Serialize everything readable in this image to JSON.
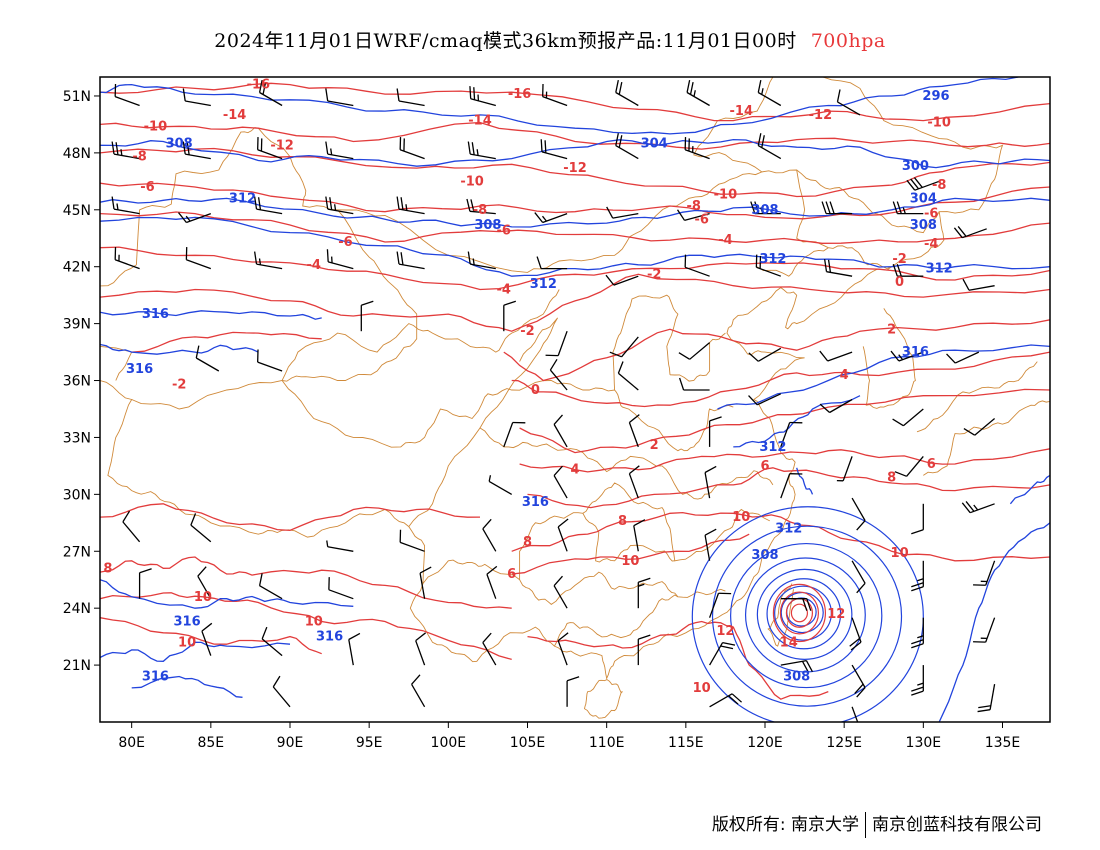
{
  "title": {
    "main": "2024年11月01日WRF/cmaq模式36km预报产品:11月01日00时",
    "level": "700hpa",
    "level_color": "#e8383a"
  },
  "map": {
    "lon_range": [
      78,
      138
    ],
    "lat_range": [
      18,
      52
    ],
    "lat_ticks": [
      "21N",
      "24N",
      "27N",
      "30N",
      "33N",
      "36N",
      "39N",
      "42N",
      "45N",
      "48N",
      "51N"
    ],
    "lon_ticks": [
      "80E",
      "85E",
      "90E",
      "95E",
      "100E",
      "105E",
      "110E",
      "115E",
      "120E",
      "125E",
      "130E",
      "135E"
    ],
    "colors": {
      "temperature_contour": "#e23c3c",
      "geopotential_contour": "#2244dd",
      "border": "#d08a3a",
      "wind_barb": "#000000"
    },
    "temperature_labels": [
      {
        "text": "-16",
        "lon": 88,
        "lat": 51.6
      },
      {
        "text": "-16",
        "lon": 104.5,
        "lat": 51.1
      },
      {
        "text": "-14",
        "lon": 86.5,
        "lat": 50.0
      },
      {
        "text": "-14",
        "lon": 102,
        "lat": 49.7
      },
      {
        "text": "-14",
        "lon": 118.5,
        "lat": 50.2
      },
      {
        "text": "-12",
        "lon": 123.5,
        "lat": 50.0
      },
      {
        "text": "-10",
        "lon": 131,
        "lat": 49.6
      },
      {
        "text": "-10",
        "lon": 81.5,
        "lat": 49.4
      },
      {
        "text": "-12",
        "lon": 89.5,
        "lat": 48.4
      },
      {
        "text": "-8",
        "lon": 80.5,
        "lat": 47.8
      },
      {
        "text": "-12",
        "lon": 108,
        "lat": 47.2
      },
      {
        "text": "-10",
        "lon": 101.5,
        "lat": 46.5
      },
      {
        "text": "-6",
        "lon": 81,
        "lat": 46.2
      },
      {
        "text": "-10",
        "lon": 117.5,
        "lat": 45.8
      },
      {
        "text": "-8",
        "lon": 115.5,
        "lat": 45.2
      },
      {
        "text": "-8",
        "lon": 102,
        "lat": 45.0
      },
      {
        "text": "-6",
        "lon": 116,
        "lat": 44.5
      },
      {
        "text": "-8",
        "lon": 131,
        "lat": 46.3
      },
      {
        "text": "-6",
        "lon": 130.5,
        "lat": 44.8
      },
      {
        "text": "-4",
        "lon": 130.5,
        "lat": 43.2
      },
      {
        "text": "-6",
        "lon": 103.5,
        "lat": 43.9
      },
      {
        "text": "-6",
        "lon": 93.5,
        "lat": 43.3
      },
      {
        "text": "-4",
        "lon": 117.5,
        "lat": 43.4
      },
      {
        "text": "-4",
        "lon": 91.5,
        "lat": 42.1
      },
      {
        "text": "-4",
        "lon": 103.5,
        "lat": 40.8
      },
      {
        "text": "-2",
        "lon": 128.5,
        "lat": 42.4
      },
      {
        "text": "-2",
        "lon": 113,
        "lat": 41.6
      },
      {
        "text": "0",
        "lon": 128.5,
        "lat": 41.2
      },
      {
        "text": "-2",
        "lon": 105,
        "lat": 38.6
      },
      {
        "text": "-2",
        "lon": 83,
        "lat": 35.8
      },
      {
        "text": "2",
        "lon": 128,
        "lat": 38.7
      },
      {
        "text": "0",
        "lon": 105.5,
        "lat": 35.5
      },
      {
        "text": "4",
        "lon": 125,
        "lat": 36.3
      },
      {
        "text": "2",
        "lon": 113,
        "lat": 32.6
      },
      {
        "text": "4",
        "lon": 108,
        "lat": 31.3
      },
      {
        "text": "6",
        "lon": 120,
        "lat": 31.5
      },
      {
        "text": "6",
        "lon": 130.5,
        "lat": 31.6
      },
      {
        "text": "8",
        "lon": 128,
        "lat": 30.9
      },
      {
        "text": "10",
        "lon": 118.5,
        "lat": 28.8
      },
      {
        "text": "8",
        "lon": 111,
        "lat": 28.6
      },
      {
        "text": "8",
        "lon": 105,
        "lat": 27.5
      },
      {
        "text": "6",
        "lon": 104,
        "lat": 25.8
      },
      {
        "text": "10",
        "lon": 111.5,
        "lat": 26.5
      },
      {
        "text": "10",
        "lon": 128.5,
        "lat": 26.9
      },
      {
        "text": "8",
        "lon": 78.5,
        "lat": 26.1
      },
      {
        "text": "10",
        "lon": 84.5,
        "lat": 24.6
      },
      {
        "text": "10",
        "lon": 83.5,
        "lat": 22.2
      },
      {
        "text": "10",
        "lon": 91.5,
        "lat": 23.3
      },
      {
        "text": "12",
        "lon": 117.5,
        "lat": 22.8
      },
      {
        "text": "12",
        "lon": 124.5,
        "lat": 23.7
      },
      {
        "text": "14",
        "lon": 121.5,
        "lat": 22.2
      },
      {
        "text": "10",
        "lon": 116,
        "lat": 19.8
      }
    ],
    "height_labels": [
      {
        "text": "296",
        "lon": 130.8,
        "lat": 51.0
      },
      {
        "text": "308",
        "lon": 83,
        "lat": 48.5
      },
      {
        "text": "304",
        "lon": 113,
        "lat": 48.5
      },
      {
        "text": "300",
        "lon": 129.5,
        "lat": 47.3
      },
      {
        "text": "312",
        "lon": 87,
        "lat": 45.6
      },
      {
        "text": "308",
        "lon": 120,
        "lat": 45.0
      },
      {
        "text": "304",
        "lon": 130,
        "lat": 45.6
      },
      {
        "text": "308",
        "lon": 102.5,
        "lat": 44.2
      },
      {
        "text": "308",
        "lon": 130,
        "lat": 44.2
      },
      {
        "text": "312",
        "lon": 120.5,
        "lat": 42.4
      },
      {
        "text": "312",
        "lon": 131,
        "lat": 41.9
      },
      {
        "text": "312",
        "lon": 106,
        "lat": 41.1
      },
      {
        "text": "316",
        "lon": 81.5,
        "lat": 39.5
      },
      {
        "text": "316",
        "lon": 129.5,
        "lat": 37.5
      },
      {
        "text": "316",
        "lon": 80.5,
        "lat": 36.6
      },
      {
        "text": "312",
        "lon": 120.5,
        "lat": 32.5
      },
      {
        "text": "316",
        "lon": 105.5,
        "lat": 29.6
      },
      {
        "text": "312",
        "lon": 121.5,
        "lat": 28.2
      },
      {
        "text": "308",
        "lon": 120,
        "lat": 26.8
      },
      {
        "text": "316",
        "lon": 83.5,
        "lat": 23.3
      },
      {
        "text": "316",
        "lon": 92.5,
        "lat": 22.5
      },
      {
        "text": "316",
        "lon": 81.5,
        "lat": 20.4
      },
      {
        "text": "308",
        "lon": 122,
        "lat": 20.4
      }
    ],
    "wind_barbs": [
      {
        "lon": 80.5,
        "lat": 50.5,
        "dir": 290,
        "spd": 10
      },
      {
        "lon": 85,
        "lat": 50.5,
        "dir": 280,
        "spd": 10
      },
      {
        "lon": 89.5,
        "lat": 50.5,
        "dir": 300,
        "spd": 20
      },
      {
        "lon": 94,
        "lat": 50.5,
        "dir": 280,
        "spd": 10
      },
      {
        "lon": 98.5,
        "lat": 50.5,
        "dir": 280,
        "spd": 10
      },
      {
        "lon": 103,
        "lat": 50.5,
        "dir": 285,
        "spd": 25
      },
      {
        "lon": 107.5,
        "lat": 50.5,
        "dir": 290,
        "spd": 15
      },
      {
        "lon": 112,
        "lat": 50.5,
        "dir": 300,
        "spd": 20
      },
      {
        "lon": 116.5,
        "lat": 50.5,
        "dir": 300,
        "spd": 25
      },
      {
        "lon": 121,
        "lat": 50.5,
        "dir": 300,
        "spd": 15
      },
      {
        "lon": 126,
        "lat": 50.0,
        "dir": 300,
        "spd": 10
      },
      {
        "lon": 80.5,
        "lat": 47.7,
        "dir": 280,
        "spd": 25
      },
      {
        "lon": 85,
        "lat": 47.7,
        "dir": 280,
        "spd": 20
      },
      {
        "lon": 89.5,
        "lat": 47.7,
        "dir": 290,
        "spd": 20
      },
      {
        "lon": 94,
        "lat": 47.7,
        "dir": 280,
        "spd": 15
      },
      {
        "lon": 98.5,
        "lat": 47.7,
        "dir": 290,
        "spd": 20
      },
      {
        "lon": 103,
        "lat": 47.7,
        "dir": 280,
        "spd": 25
      },
      {
        "lon": 107.5,
        "lat": 47.7,
        "dir": 285,
        "spd": 20
      },
      {
        "lon": 112,
        "lat": 47.7,
        "dir": 300,
        "spd": 20
      },
      {
        "lon": 116.5,
        "lat": 47.7,
        "dir": 290,
        "spd": 25
      },
      {
        "lon": 121,
        "lat": 47.7,
        "dir": 300,
        "spd": 20
      },
      {
        "lon": 131,
        "lat": 46.5,
        "dir": 250,
        "spd": 30
      },
      {
        "lon": 80.5,
        "lat": 44.8,
        "dir": 280,
        "spd": 15
      },
      {
        "lon": 85,
        "lat": 44.8,
        "dir": 250,
        "spd": 15
      },
      {
        "lon": 89.5,
        "lat": 44.8,
        "dir": 280,
        "spd": 20
      },
      {
        "lon": 94,
        "lat": 44.8,
        "dir": 280,
        "spd": 25
      },
      {
        "lon": 98.5,
        "lat": 44.8,
        "dir": 280,
        "spd": 25
      },
      {
        "lon": 103,
        "lat": 44.8,
        "dir": 275,
        "spd": 20
      },
      {
        "lon": 107.5,
        "lat": 44.8,
        "dir": 250,
        "spd": 15
      },
      {
        "lon": 112,
        "lat": 44.8,
        "dir": 260,
        "spd": 10
      },
      {
        "lon": 116.5,
        "lat": 44.8,
        "dir": 255,
        "spd": 10
      },
      {
        "lon": 121,
        "lat": 44.8,
        "dir": 270,
        "spd": 25
      },
      {
        "lon": 125.5,
        "lat": 44.8,
        "dir": 270,
        "spd": 30
      },
      {
        "lon": 130,
        "lat": 44.8,
        "dir": 270,
        "spd": 25
      },
      {
        "lon": 134,
        "lat": 44.0,
        "dir": 250,
        "spd": 20
      },
      {
        "lon": 80.5,
        "lat": 41.9,
        "dir": 290,
        "spd": 15
      },
      {
        "lon": 85,
        "lat": 41.9,
        "dir": 290,
        "spd": 10
      },
      {
        "lon": 89.5,
        "lat": 41.9,
        "dir": 280,
        "spd": 15
      },
      {
        "lon": 94,
        "lat": 41.9,
        "dir": 285,
        "spd": 15
      },
      {
        "lon": 98.5,
        "lat": 41.9,
        "dir": 280,
        "spd": 20
      },
      {
        "lon": 103,
        "lat": 41.9,
        "dir": 280,
        "spd": 15
      },
      {
        "lon": 107.5,
        "lat": 41.9,
        "dir": 270,
        "spd": 10
      },
      {
        "lon": 112,
        "lat": 41.5,
        "dir": 250,
        "spd": 10
      },
      {
        "lon": 116.5,
        "lat": 41.5,
        "dir": 290,
        "spd": 10
      },
      {
        "lon": 121,
        "lat": 41.5,
        "dir": 290,
        "spd": 20
      },
      {
        "lon": 125.5,
        "lat": 41.5,
        "dir": 280,
        "spd": 20
      },
      {
        "lon": 130,
        "lat": 41.5,
        "dir": 270,
        "spd": 20
      },
      {
        "lon": 134.5,
        "lat": 41.0,
        "dir": 260,
        "spd": 10
      },
      {
        "lon": 94.5,
        "lat": 38.6,
        "dir": 0,
        "spd": 10
      },
      {
        "lon": 103.5,
        "lat": 38.6,
        "dir": 0,
        "spd": 10
      },
      {
        "lon": 107.5,
        "lat": 38.6,
        "dir": 200,
        "spd": 10
      },
      {
        "lon": 112,
        "lat": 38.3,
        "dir": 220,
        "spd": 10
      },
      {
        "lon": 116.5,
        "lat": 38.0,
        "dir": 230,
        "spd": 10
      },
      {
        "lon": 121,
        "lat": 37.7,
        "dir": 240,
        "spd": 10
      },
      {
        "lon": 125.5,
        "lat": 37.5,
        "dir": 250,
        "spd": 10
      },
      {
        "lon": 130,
        "lat": 37.5,
        "dir": 250,
        "spd": 15
      },
      {
        "lon": 133.5,
        "lat": 37.5,
        "dir": 245,
        "spd": 10
      },
      {
        "lon": 85.5,
        "lat": 36.5,
        "dir": 300,
        "spd": 10
      },
      {
        "lon": 89.5,
        "lat": 36.5,
        "dir": 290,
        "spd": 10
      },
      {
        "lon": 107.5,
        "lat": 35.5,
        "dir": 320,
        "spd": 10
      },
      {
        "lon": 112,
        "lat": 35.5,
        "dir": 310,
        "spd": 10
      },
      {
        "lon": 116.5,
        "lat": 35.5,
        "dir": 270,
        "spd": 10
      },
      {
        "lon": 121,
        "lat": 35.3,
        "dir": 245,
        "spd": 10
      },
      {
        "lon": 125.5,
        "lat": 35.0,
        "dir": 240,
        "spd": 10
      },
      {
        "lon": 130,
        "lat": 34.5,
        "dir": 230,
        "spd": 10
      },
      {
        "lon": 134.5,
        "lat": 34.0,
        "dir": 230,
        "spd": 10
      },
      {
        "lon": 103.5,
        "lat": 32.5,
        "dir": 20,
        "spd": 10
      },
      {
        "lon": 107.5,
        "lat": 32.5,
        "dir": 330,
        "spd": 10
      },
      {
        "lon": 112,
        "lat": 32.5,
        "dir": 340,
        "spd": 10
      },
      {
        "lon": 116.5,
        "lat": 32.5,
        "dir": 0,
        "spd": 10
      },
      {
        "lon": 121,
        "lat": 32.5,
        "dir": 20,
        "spd": 10
      },
      {
        "lon": 125.5,
        "lat": 32.0,
        "dir": 200,
        "spd": 5
      },
      {
        "lon": 130,
        "lat": 32.0,
        "dir": 220,
        "spd": 10
      },
      {
        "lon": 104,
        "lat": 30.0,
        "dir": 300,
        "spd": 5
      },
      {
        "lon": 107.5,
        "lat": 29.8,
        "dir": 330,
        "spd": 10
      },
      {
        "lon": 112,
        "lat": 29.8,
        "dir": 340,
        "spd": 10
      },
      {
        "lon": 116.5,
        "lat": 29.8,
        "dir": 350,
        "spd": 10
      },
      {
        "lon": 121,
        "lat": 29.8,
        "dir": 20,
        "spd": 10
      },
      {
        "lon": 125.5,
        "lat": 29.8,
        "dir": 150,
        "spd": 10
      },
      {
        "lon": 130,
        "lat": 29.5,
        "dir": 180,
        "spd": 10
      },
      {
        "lon": 134.5,
        "lat": 29.5,
        "dir": 250,
        "spd": 25
      },
      {
        "lon": 80.5,
        "lat": 27.5,
        "dir": 320,
        "spd": 10
      },
      {
        "lon": 85,
        "lat": 27.5,
        "dir": 310,
        "spd": 10
      },
      {
        "lon": 94,
        "lat": 27.0,
        "dir": 280,
        "spd": 5
      },
      {
        "lon": 98.5,
        "lat": 27.0,
        "dir": 290,
        "spd": 10
      },
      {
        "lon": 103,
        "lat": 27.0,
        "dir": 330,
        "spd": 10
      },
      {
        "lon": 107.5,
        "lat": 27.0,
        "dir": 340,
        "spd": 10
      },
      {
        "lon": 112,
        "lat": 27.0,
        "dir": 350,
        "spd": 10
      },
      {
        "lon": 116.5,
        "lat": 26.5,
        "dir": 350,
        "spd": 10
      },
      {
        "lon": 125.5,
        "lat": 26.5,
        "dir": 150,
        "spd": 10
      },
      {
        "lon": 130,
        "lat": 26.5,
        "dir": 180,
        "spd": 25
      },
      {
        "lon": 134.5,
        "lat": 26.5,
        "dir": 200,
        "spd": 15
      },
      {
        "lon": 80.5,
        "lat": 24.5,
        "dir": 0,
        "spd": 10
      },
      {
        "lon": 85,
        "lat": 24.5,
        "dir": 330,
        "spd": 10
      },
      {
        "lon": 89.5,
        "lat": 24.5,
        "dir": 300,
        "spd": 10
      },
      {
        "lon": 94,
        "lat": 24.5,
        "dir": 290,
        "spd": 10
      },
      {
        "lon": 98.5,
        "lat": 24.5,
        "dir": 350,
        "spd": 10
      },
      {
        "lon": 103,
        "lat": 24.5,
        "dir": 340,
        "spd": 10
      },
      {
        "lon": 107.5,
        "lat": 24.0,
        "dir": 330,
        "spd": 10
      },
      {
        "lon": 112,
        "lat": 24.0,
        "dir": 0,
        "spd": 15
      },
      {
        "lon": 116.5,
        "lat": 23.5,
        "dir": 20,
        "spd": 10
      },
      {
        "lon": 121,
        "lat": 24.5,
        "dir": 90,
        "spd": 20
      },
      {
        "lon": 125.5,
        "lat": 23.5,
        "dir": 160,
        "spd": 20
      },
      {
        "lon": 130,
        "lat": 23.5,
        "dir": 180,
        "spd": 25
      },
      {
        "lon": 134.5,
        "lat": 23.5,
        "dir": 200,
        "spd": 15
      },
      {
        "lon": 85,
        "lat": 21.5,
        "dir": 340,
        "spd": 10
      },
      {
        "lon": 89.5,
        "lat": 21.5,
        "dir": 310,
        "spd": 10
      },
      {
        "lon": 94,
        "lat": 21.0,
        "dir": 350,
        "spd": 10
      },
      {
        "lon": 98.5,
        "lat": 21.0,
        "dir": 340,
        "spd": 10
      },
      {
        "lon": 103,
        "lat": 21.0,
        "dir": 330,
        "spd": 10
      },
      {
        "lon": 107.5,
        "lat": 21.0,
        "dir": 340,
        "spd": 10
      },
      {
        "lon": 112,
        "lat": 21.0,
        "dir": 0,
        "spd": 10
      },
      {
        "lon": 116.5,
        "lat": 21.0,
        "dir": 30,
        "spd": 20
      },
      {
        "lon": 121,
        "lat": 21.0,
        "dir": 80,
        "spd": 20
      },
      {
        "lon": 125.5,
        "lat": 21.0,
        "dir": 150,
        "spd": 20
      },
      {
        "lon": 130,
        "lat": 21.0,
        "dir": 180,
        "spd": 25
      },
      {
        "lon": 134.5,
        "lat": 20.0,
        "dir": 190,
        "spd": 20
      },
      {
        "lon": 90,
        "lat": 18.8,
        "dir": 320,
        "spd": 10
      },
      {
        "lon": 98.5,
        "lat": 18.8,
        "dir": 330,
        "spd": 10
      },
      {
        "lon": 107.5,
        "lat": 18.8,
        "dir": 0,
        "spd": 10
      },
      {
        "lon": 116.5,
        "lat": 18.8,
        "dir": 60,
        "spd": 20
      },
      {
        "lon": 125.5,
        "lat": 18.8,
        "dir": 160,
        "spd": 20
      }
    ]
  },
  "footer": {
    "copyright": "版权所有: 南京大学",
    "company": "南京创蓝科技有限公司"
  }
}
